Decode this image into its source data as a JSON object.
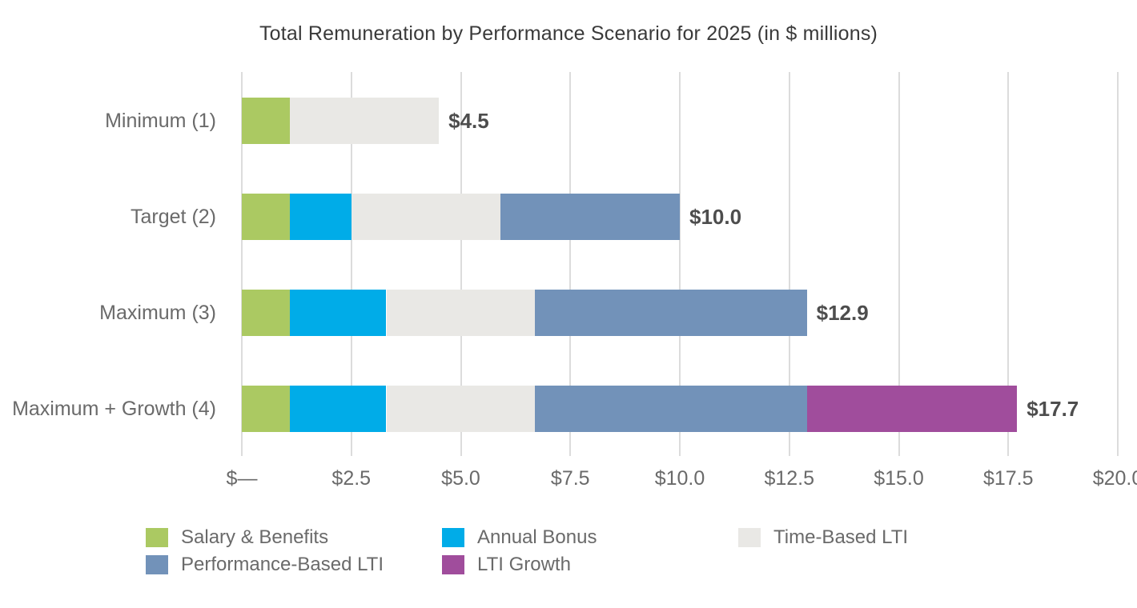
{
  "chart_data": {
    "type": "bar",
    "orientation": "horizontal",
    "stacked": true,
    "title": "Total Remuneration by Performance Scenario for 2025 (in $ millions)",
    "categories": [
      "Minimum (1)",
      "Target (2)",
      "Maximum (3)",
      "Maximum + Growth (4)"
    ],
    "series": [
      {
        "name": "Salary & Benefits",
        "color": "#abc962",
        "values": [
          1.1,
          1.1,
          1.1,
          1.1
        ]
      },
      {
        "name": "Annual Bonus",
        "color": "#00ace8",
        "values": [
          0,
          1.4,
          2.2,
          2.2
        ]
      },
      {
        "name": "Time-Based LTI",
        "color": "#e9e8e5",
        "values": [
          3.4,
          3.4,
          3.4,
          3.4
        ]
      },
      {
        "name": "Performance-Based LTI",
        "color": "#7292b9",
        "values": [
          0,
          4.1,
          6.2,
          6.2
        ]
      },
      {
        "name": "LTI Growth",
        "color": "#a04d9c",
        "values": [
          0,
          0,
          0,
          4.8
        ]
      }
    ],
    "totals": [
      4.5,
      10.0,
      12.9,
      17.7
    ],
    "total_labels": [
      "$4.5",
      "$10.0",
      "$12.9",
      "$17.7"
    ],
    "x_ticks": [
      {
        "value": 0,
        "label": "$—"
      },
      {
        "value": 2.5,
        "label": "$2.5"
      },
      {
        "value": 5,
        "label": "$5.0"
      },
      {
        "value": 7.5,
        "label": "$7.5"
      },
      {
        "value": 10,
        "label": "$10.0"
      },
      {
        "value": 12.5,
        "label": "$12.5"
      },
      {
        "value": 15,
        "label": "$15.0"
      },
      {
        "value": 17.5,
        "label": "$17.5"
      },
      {
        "value": 20,
        "label": "$20.0"
      }
    ],
    "xlim": [
      0,
      20
    ],
    "grid": "vertical",
    "legend_position": "bottom"
  },
  "colors": {
    "title_text": "#3a3a3a",
    "axis_text": "#6a6a6a",
    "total_text": "#4d4d4d",
    "gridline": "#dcdcdc",
    "background": "#ffffff"
  }
}
